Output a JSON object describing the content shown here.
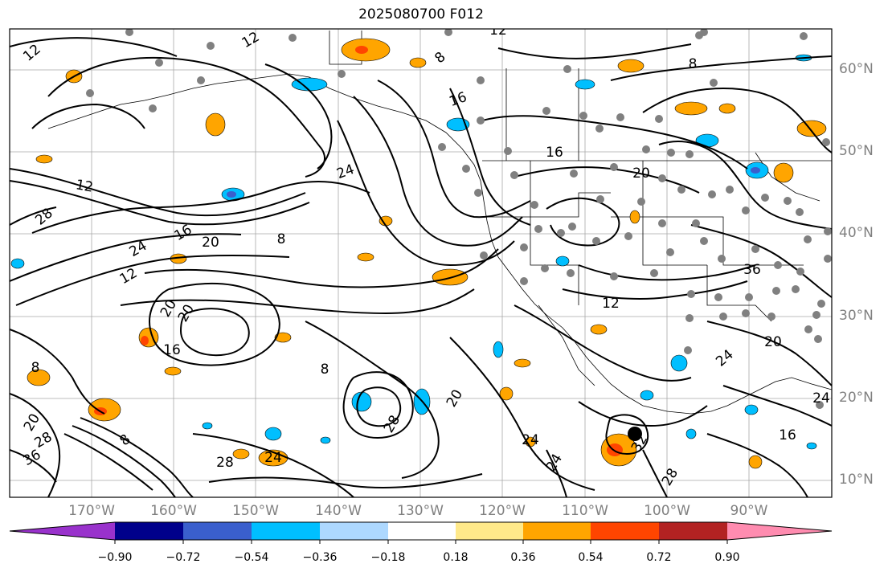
{
  "title": "2025080700 F012",
  "lat_labels": [
    "60°N",
    "50°N",
    "40°N",
    "30°N",
    "20°N",
    "10°N"
  ],
  "lon_labels": [
    "170°W",
    "160°W",
    "150°W",
    "140°W",
    "130°W",
    "120°W",
    "110°W",
    "100°W",
    "90°W"
  ],
  "contour_labels": [
    "12",
    "12",
    "8",
    "16",
    "8",
    "20",
    "24",
    "12",
    "28",
    "24",
    "16",
    "20",
    "12",
    "8",
    "16",
    "8",
    "20",
    "12",
    "16",
    "36",
    "24",
    "20",
    "24",
    "8",
    "20",
    "28",
    "20",
    "24",
    "28",
    "28",
    "24",
    "32",
    "20",
    "16",
    "28",
    "36",
    "12",
    "8",
    "24"
  ],
  "colorbar": {
    "ticks": [
      "−0.90",
      "−0.72",
      "−0.54",
      "−0.36",
      "−0.18",
      "0.18",
      "0.36",
      "0.54",
      "0.72",
      "0.90"
    ],
    "colors": [
      "#9932cc",
      "#00008b",
      "#3a5fcd",
      "#00bfff",
      "#add8ff",
      "#ffffff",
      "#ffe98a",
      "#ffa500",
      "#ff4500",
      "#b22222",
      "#ff8cb0"
    ]
  }
}
